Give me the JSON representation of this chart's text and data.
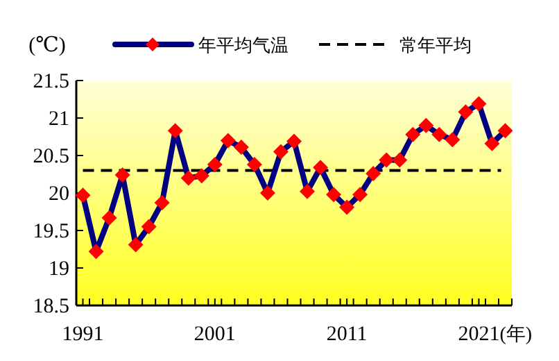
{
  "chart_data": {
    "type": "line",
    "ylabel": "(℃)",
    "xlabel": "(年)",
    "x": [
      1991,
      1992,
      1993,
      1994,
      1995,
      1996,
      1997,
      1998,
      1999,
      2000,
      2001,
      2002,
      2003,
      2004,
      2005,
      2006,
      2007,
      2008,
      2009,
      2010,
      2011,
      2012,
      2013,
      2014,
      2015,
      2016,
      2017,
      2018,
      2019,
      2020,
      2021,
      2022,
      2023
    ],
    "series": [
      {
        "name": "年平均气温",
        "color": "#000080",
        "values": [
          19.97,
          19.22,
          19.67,
          20.24,
          19.31,
          19.55,
          19.87,
          20.83,
          20.2,
          20.23,
          20.38,
          20.7,
          20.61,
          20.38,
          20.0,
          20.55,
          20.69,
          20.02,
          20.34,
          19.98,
          19.81,
          19.98,
          20.26,
          20.44,
          20.44,
          20.78,
          20.9,
          20.78,
          20.71,
          21.08,
          21.19,
          20.66,
          20.83
        ]
      }
    ],
    "ref_lines": [
      {
        "axis": "y",
        "value": 20.3,
        "label": "常年平均",
        "color": "#000000",
        "line_style": "dashed"
      }
    ],
    "xlim": [
      1990.5,
      2023.5
    ],
    "xticks": [
      1991,
      2001,
      2011,
      2021,
      {
        "value": 1991.5,
        "label": null
      },
      {
        "value": 1992.5,
        "label": null
      },
      {
        "value": 1993.5,
        "label": null
      },
      {
        "value": 1994.5,
        "label": null
      },
      {
        "value": 1995.5,
        "label": null
      },
      {
        "value": 1996.5,
        "label": null
      },
      {
        "value": 1997.5,
        "label": null
      },
      {
        "value": 1998.5,
        "label": null
      },
      {
        "value": 1999.5,
        "label": null
      },
      {
        "value": 2000.5,
        "label": null
      },
      {
        "value": 2001.5,
        "label": null
      },
      {
        "value": 2002.5,
        "label": null
      },
      {
        "value": 2003.5,
        "label": null
      },
      {
        "value": 2004.5,
        "label": null
      },
      {
        "value": 2005.5,
        "label": null
      },
      {
        "value": 2006.5,
        "label": null
      },
      {
        "value": 2007.5,
        "label": null
      },
      {
        "value": 2008.5,
        "label": null
      },
      {
        "value": 2009.5,
        "label": null
      },
      {
        "value": 2010.5,
        "label": null
      },
      {
        "value": 2011.5,
        "label": null
      },
      {
        "value": 2012.5,
        "label": null
      },
      {
        "value": 2013.5,
        "label": null
      },
      {
        "value": 2014.5,
        "label": null
      },
      {
        "value": 2015.5,
        "label": null
      },
      {
        "value": 2016.5,
        "label": null
      },
      {
        "value": 2017.5,
        "label": null
      },
      {
        "value": 2018.5,
        "label": null
      },
      {
        "value": 2019.5,
        "label": null
      },
      {
        "value": 2020.5,
        "label": null
      },
      {
        "value": 2021.5,
        "label": null
      },
      {
        "value": 2022.5,
        "label": null
      },
      {
        "value": 2023.5,
        "label": null
      }
    ],
    "ylim": [
      18.5,
      21.5
    ],
    "yticks": [
      18.5,
      19,
      19.5,
      20,
      20.5,
      21,
      21.5
    ],
    "grid": false,
    "legend": "top",
    "marker": "diamond",
    "line_style": "solid"
  }
}
